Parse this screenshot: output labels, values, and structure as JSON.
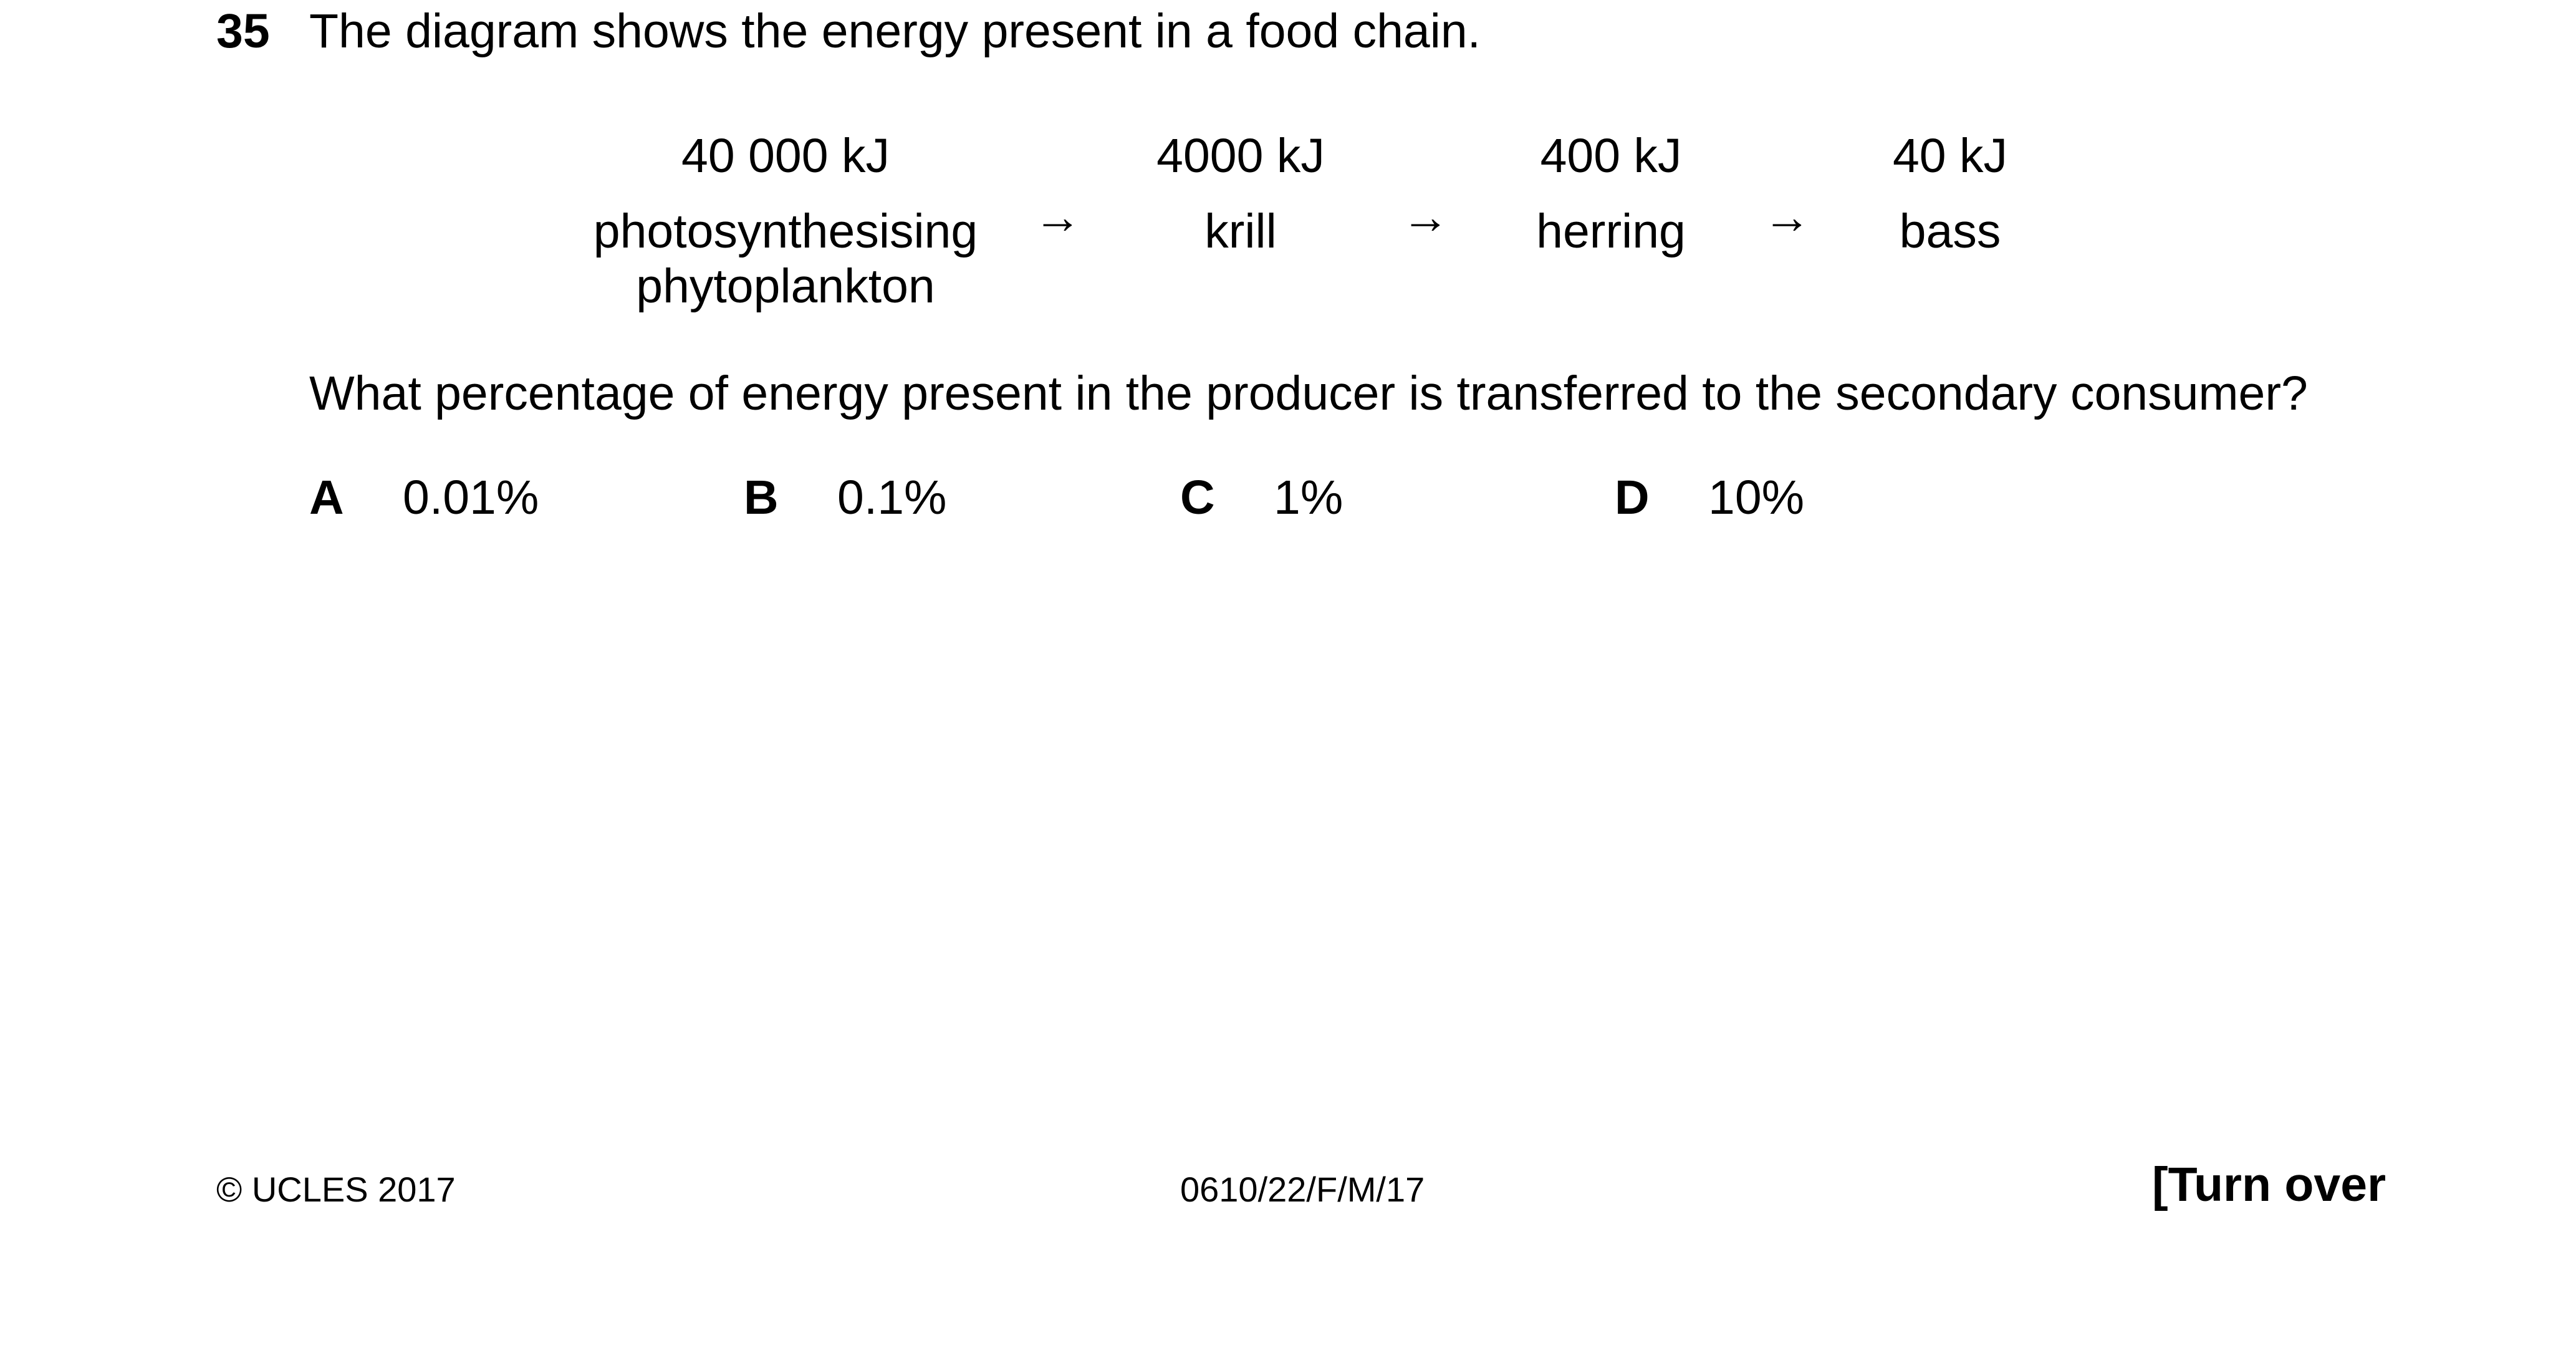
{
  "question": {
    "number": "35",
    "intro": "The diagram shows the energy present in a food chain.",
    "prompt": "What percentage of energy present in the producer is transferred to the secondary consumer?"
  },
  "food_chain": {
    "arrow": "→",
    "items": [
      {
        "energy": "40 000 kJ",
        "organism_line1": "photosynthesising",
        "organism_line2": "phytoplankton"
      },
      {
        "energy": "4000 kJ",
        "organism_line1": "krill",
        "organism_line2": ""
      },
      {
        "energy": "400 kJ",
        "organism_line1": "herring",
        "organism_line2": ""
      },
      {
        "energy": "40 kJ",
        "organism_line1": "bass",
        "organism_line2": ""
      }
    ]
  },
  "options": [
    {
      "letter": "A",
      "value": "0.01%"
    },
    {
      "letter": "B",
      "value": "0.1%"
    },
    {
      "letter": "C",
      "value": "1%"
    },
    {
      "letter": "D",
      "value": "10%"
    }
  ],
  "footer": {
    "copyright": "© UCLES 2017",
    "code": "0610/22/F/M/17",
    "turn_over": "[Turn over"
  }
}
